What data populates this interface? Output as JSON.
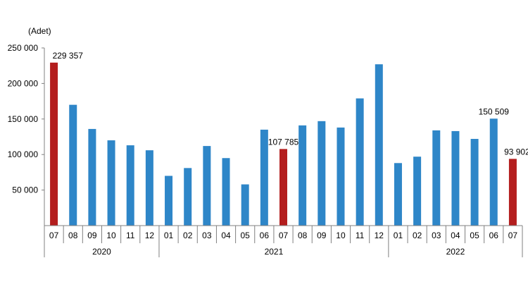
{
  "chart_data": {
    "type": "bar",
    "unit_label": "(Adet)",
    "categories": [
      "07",
      "08",
      "09",
      "10",
      "11",
      "12",
      "01",
      "02",
      "03",
      "04",
      "05",
      "06",
      "07",
      "08",
      "09",
      "10",
      "11",
      "12",
      "01",
      "02",
      "03",
      "04",
      "05",
      "06",
      "07"
    ],
    "values": [
      229357,
      170000,
      136000,
      120000,
      113000,
      106000,
      70000,
      81000,
      112000,
      95000,
      58000,
      135000,
      107785,
      141000,
      147000,
      138000,
      179000,
      227000,
      88000,
      97000,
      134000,
      133000,
      122000,
      150509,
      93902
    ],
    "highlight_indices": [
      0,
      12,
      24
    ],
    "data_labels": [
      {
        "index": 0,
        "text": "229 357"
      },
      {
        "index": 12,
        "text": "107 785"
      },
      {
        "index": 23,
        "text": "150 509"
      },
      {
        "index": 24,
        "text": "93 902"
      }
    ],
    "year_groups": [
      {
        "label": "2020",
        "start": 0,
        "end": 5
      },
      {
        "label": "2021",
        "start": 6,
        "end": 17
      },
      {
        "label": "2022",
        "start": 18,
        "end": 24
      }
    ],
    "yticks": [
      {
        "value": 50000,
        "label": "50 000"
      },
      {
        "value": 100000,
        "label": "100 000"
      },
      {
        "value": 150000,
        "label": "150 000"
      },
      {
        "value": 200000,
        "label": "200 000"
      },
      {
        "value": 250000,
        "label": "250 000"
      }
    ],
    "ylim": [
      0,
      250000
    ],
    "grid": false,
    "colors": {
      "normal": "#2e86c8",
      "highlight": "#b41e1e"
    }
  }
}
